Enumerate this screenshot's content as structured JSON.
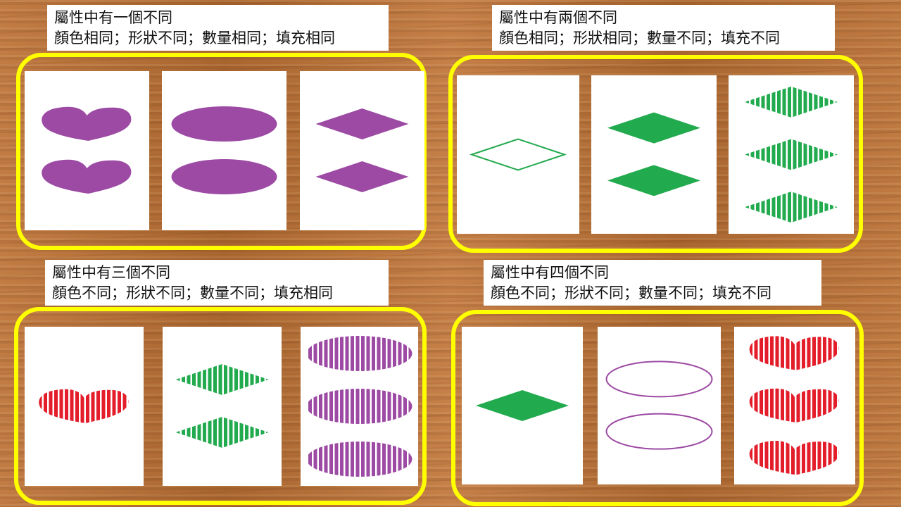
{
  "colors": {
    "purple": "#9c4aa3",
    "green": "#22aa4e",
    "red": "#e31d2a",
    "frame": "#ffff00"
  },
  "panels": [
    {
      "heading": "屬性中有一個不同",
      "detail": "顏色相同；形狀不同；數量相同；填充相同",
      "cards": [
        {
          "shape": "heart",
          "count": 2,
          "color": "purple",
          "fill": "solid"
        },
        {
          "shape": "ellipse",
          "count": 2,
          "color": "purple",
          "fill": "solid"
        },
        {
          "shape": "diamond",
          "count": 2,
          "color": "purple",
          "fill": "solid"
        }
      ]
    },
    {
      "heading": "屬性中有兩個不同",
      "detail": "顏色相同；形狀相同；數量不同；填充不同",
      "cards": [
        {
          "shape": "diamond",
          "count": 1,
          "color": "green",
          "fill": "outline"
        },
        {
          "shape": "diamond",
          "count": 2,
          "color": "green",
          "fill": "solid"
        },
        {
          "shape": "diamond",
          "count": 3,
          "color": "green",
          "fill": "striped"
        }
      ]
    },
    {
      "heading": "屬性中有三個不同",
      "detail": "顏色不同；形狀不同；數量不同；填充相同",
      "cards": [
        {
          "shape": "heart",
          "count": 1,
          "color": "red",
          "fill": "striped"
        },
        {
          "shape": "diamond",
          "count": 2,
          "color": "green",
          "fill": "striped"
        },
        {
          "shape": "ellipse",
          "count": 3,
          "color": "purple",
          "fill": "striped"
        }
      ]
    },
    {
      "heading": "屬性中有四個不同",
      "detail": "顏色不同；形狀不同；數量不同；填充不同",
      "cards": [
        {
          "shape": "diamond",
          "count": 1,
          "color": "green",
          "fill": "solid"
        },
        {
          "shape": "ellipse",
          "count": 2,
          "color": "purple",
          "fill": "outline"
        },
        {
          "shape": "heart",
          "count": 3,
          "color": "red",
          "fill": "striped"
        }
      ]
    }
  ]
}
